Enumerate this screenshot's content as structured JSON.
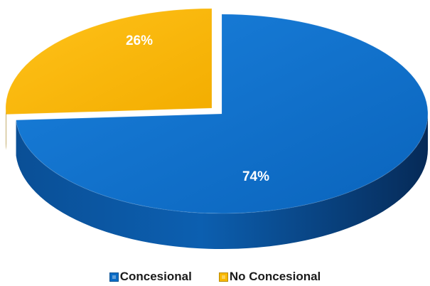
{
  "chart_data": {
    "type": "pie",
    "style": "3d-exploded",
    "title": "",
    "categories": [
      "Concesional",
      "No Concesional"
    ],
    "values": [
      74,
      26
    ],
    "data_labels": [
      "74%",
      "26%"
    ],
    "colors": [
      "#0B6CC6",
      "#F9B800"
    ],
    "legend_position": "bottom"
  },
  "legend": {
    "items": [
      {
        "label": "Concesional",
        "color": "#0B6CC6",
        "icon": "square-swatch-icon"
      },
      {
        "label": "No Concesional",
        "color": "#F9B800",
        "icon": "square-swatch-icon"
      }
    ]
  }
}
